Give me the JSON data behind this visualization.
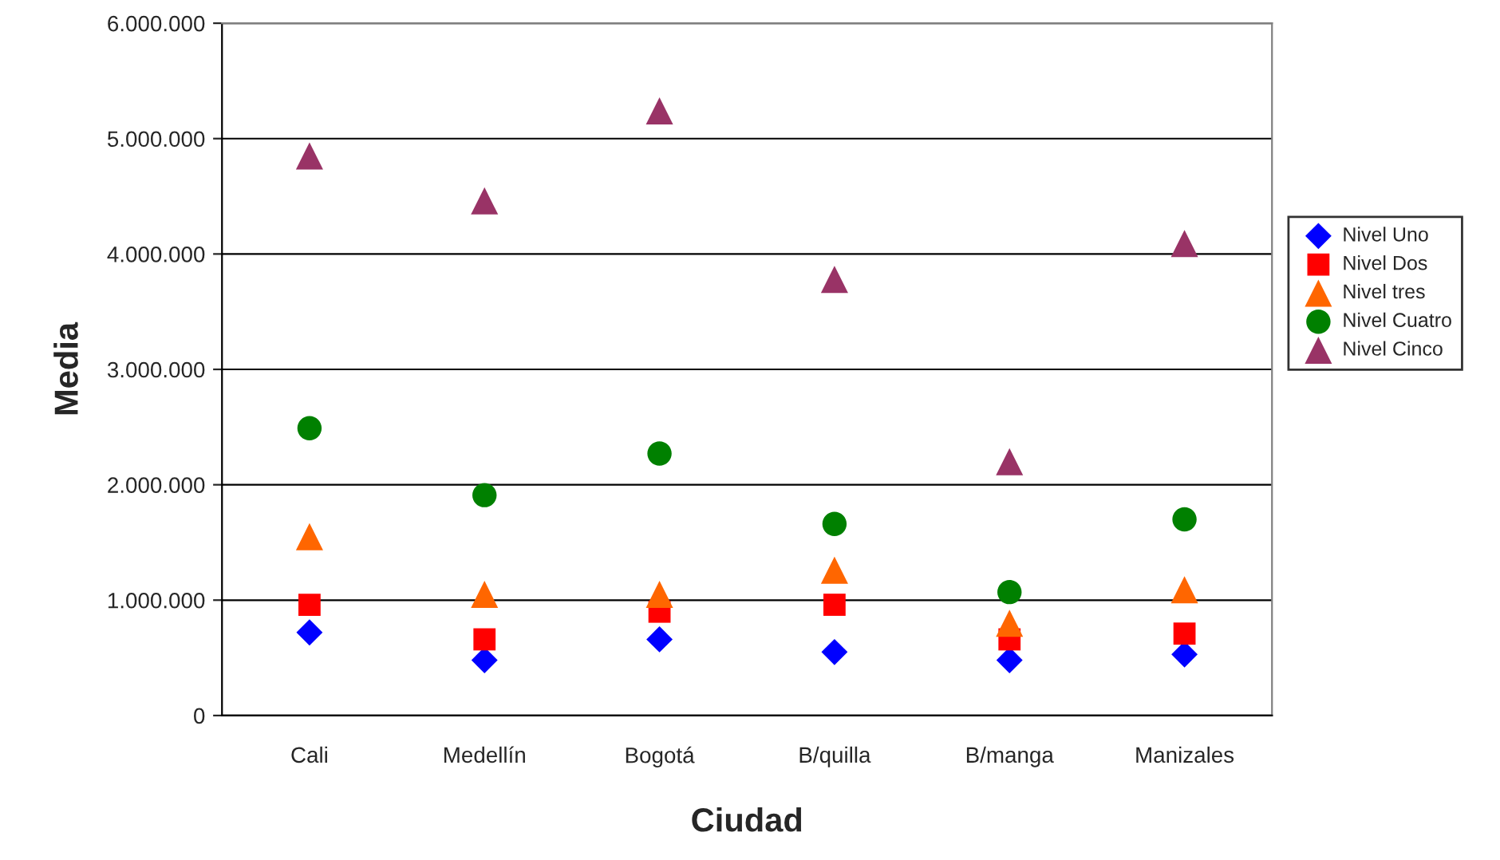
{
  "chart_data": {
    "type": "scatter",
    "xlabel": "Ciudad",
    "ylabel": "Media",
    "categories": [
      "Cali",
      "Medellín",
      "Bogotá",
      "B/quilla",
      "B/manga",
      "Manizales"
    ],
    "series": [
      {
        "name": "Nivel Uno",
        "color": "#0000ff",
        "marker": "diamond",
        "values": [
          720000,
          480000,
          660000,
          550000,
          480000,
          530000
        ]
      },
      {
        "name": "Nivel Dos",
        "color": "#ff0000",
        "marker": "square",
        "values": [
          960000,
          660000,
          900000,
          960000,
          660000,
          710000
        ]
      },
      {
        "name": "Nivel tres",
        "color": "#ff6600",
        "marker": "triangle",
        "values": [
          1550000,
          1050000,
          1050000,
          1260000,
          800000,
          1090000
        ]
      },
      {
        "name": "Nivel Cuatro",
        "color": "#008000",
        "marker": "circle",
        "values": [
          2490000,
          1910000,
          2270000,
          1660000,
          1070000,
          1700000
        ]
      },
      {
        "name": "Nivel Cinco",
        "color": "#993366",
        "marker": "triangle",
        "values": [
          4850000,
          4460000,
          5240000,
          3780000,
          2200000,
          4090000
        ]
      }
    ],
    "ylim": [
      0,
      6000000
    ],
    "yticks": [
      0,
      {
        "value": 1000000,
        "label": "1.000.000"
      },
      {
        "value": 2000000,
        "label": "2.000.000"
      },
      {
        "value": 3000000,
        "label": "3.000.000"
      },
      {
        "value": 4000000,
        "label": "4.000.000"
      },
      {
        "value": 5000000,
        "label": "5.000.000"
      },
      {
        "value": 6000000,
        "label": "6.000.000"
      }
    ],
    "grid": "y",
    "legend": "right"
  }
}
